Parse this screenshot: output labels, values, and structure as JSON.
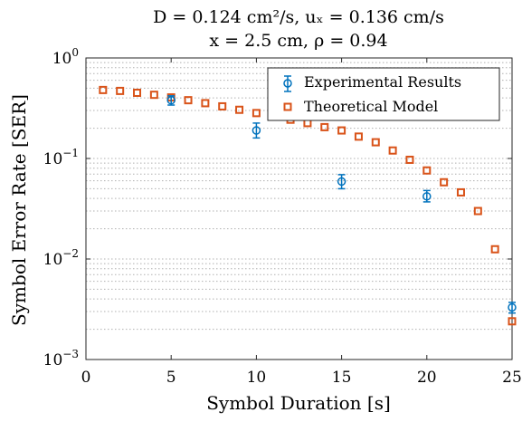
{
  "chart_data": {
    "type": "scatter",
    "title_lines": [
      "D = 0.124 cm²/s, uₓ = 0.136 cm/s",
      "x = 2.5 cm, ρ = 0.94"
    ],
    "xlabel": "Symbol Duration [s]",
    "ylabel": "Symbol Error Rate [SER]",
    "xlim": [
      0,
      25
    ],
    "ylim": [
      0.001,
      1
    ],
    "yscale": "log",
    "x_ticks": [
      0,
      5,
      10,
      15,
      20,
      25
    ],
    "x_tick_labels": [
      "0",
      "5",
      "10",
      "15",
      "20",
      "25"
    ],
    "y_ticks": [
      0.001,
      0.01,
      0.1,
      1
    ],
    "y_tick_labels": [
      {
        "base": "10",
        "exp": "−3"
      },
      {
        "base": "10",
        "exp": "−2"
      },
      {
        "base": "10",
        "exp": "−1"
      },
      {
        "base": "10",
        "exp": "0"
      }
    ],
    "grid": "y-major-and-minor dotted",
    "legend": {
      "placement": "top-right",
      "entries": [
        {
          "name": "Experimental Results",
          "marker": "circle-errorbar",
          "color": "#0072BD"
        },
        {
          "name": "Theoretical Model",
          "marker": "square",
          "color": "#D95319"
        }
      ]
    },
    "series": [
      {
        "name": "Experimental Results",
        "marker": "circle",
        "color": "#0072BD",
        "points": [
          {
            "x": 5,
            "y": 0.38,
            "ylow": 0.34,
            "yhigh": 0.42
          },
          {
            "x": 10,
            "y": 0.19,
            "ylow": 0.16,
            "yhigh": 0.225
          },
          {
            "x": 15,
            "y": 0.059,
            "ylow": 0.05,
            "yhigh": 0.069
          },
          {
            "x": 20,
            "y": 0.042,
            "ylow": 0.037,
            "yhigh": 0.048
          },
          {
            "x": 25,
            "y": 0.0033,
            "ylow": 0.0029,
            "yhigh": 0.0037
          }
        ]
      },
      {
        "name": "Theoretical Model",
        "marker": "square",
        "color": "#D95319",
        "points": [
          {
            "x": 1,
            "y": 0.48
          },
          {
            "x": 2,
            "y": 0.47
          },
          {
            "x": 3,
            "y": 0.45
          },
          {
            "x": 4,
            "y": 0.43
          },
          {
            "x": 5,
            "y": 0.405
          },
          {
            "x": 6,
            "y": 0.38
          },
          {
            "x": 7,
            "y": 0.355
          },
          {
            "x": 8,
            "y": 0.33
          },
          {
            "x": 9,
            "y": 0.305
          },
          {
            "x": 10,
            "y": 0.283
          },
          {
            "x": 11,
            "y": 0.26
          },
          {
            "x": 12,
            "y": 0.243
          },
          {
            "x": 13,
            "y": 0.225
          },
          {
            "x": 14,
            "y": 0.205
          },
          {
            "x": 15,
            "y": 0.19
          },
          {
            "x": 16,
            "y": 0.165
          },
          {
            "x": 17,
            "y": 0.145
          },
          {
            "x": 18,
            "y": 0.12
          },
          {
            "x": 19,
            "y": 0.097
          },
          {
            "x": 20,
            "y": 0.076
          },
          {
            "x": 21,
            "y": 0.058
          },
          {
            "x": 22,
            "y": 0.046
          },
          {
            "x": 23,
            "y": 0.03
          },
          {
            "x": 24,
            "y": 0.0125
          },
          {
            "x": 25,
            "y": 0.0024
          }
        ]
      }
    ]
  }
}
